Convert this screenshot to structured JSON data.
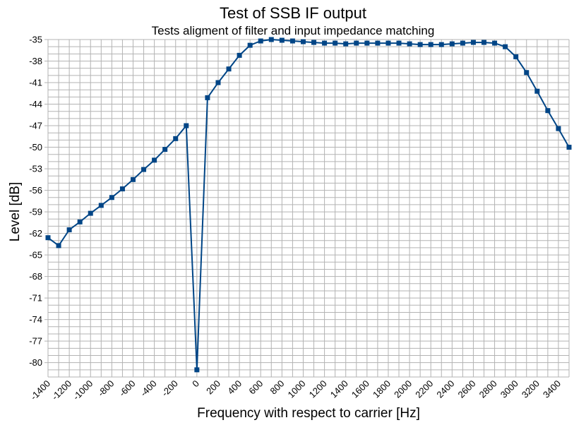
{
  "chart_data": {
    "type": "line",
    "title": "Test of SSB IF output",
    "subtitle": "Tests aligment of filter and input impedance matching",
    "xlabel": "Frequency with respect to carrier [Hz]",
    "ylabel": "Level [dB]",
    "xlim": [
      -1400,
      3500
    ],
    "ylim": [
      -82,
      -35
    ],
    "x_ticks": [
      -1400,
      -1200,
      -1000,
      -800,
      -600,
      -400,
      -200,
      0,
      200,
      400,
      600,
      800,
      1000,
      1200,
      1400,
      1600,
      1800,
      2000,
      2200,
      2400,
      2600,
      2800,
      3000,
      3200,
      3400
    ],
    "y_ticks": [
      -35,
      -38,
      -41,
      -44,
      -47,
      -50,
      -53,
      -56,
      -59,
      -62,
      -65,
      -68,
      -71,
      -74,
      -77,
      -80
    ],
    "grid": true,
    "line_color": "#004586",
    "marker": "square",
    "series": [
      {
        "x": [
          -1400,
          -1300,
          -1200,
          -1100,
          -1000,
          -900,
          -800,
          -700,
          -600,
          -500,
          -400,
          -300,
          -200,
          -100,
          0,
          100,
          200,
          300,
          400,
          500,
          600,
          700,
          800,
          900,
          1000,
          1100,
          1200,
          1300,
          1400,
          1500,
          1600,
          1700,
          1800,
          1900,
          2000,
          2100,
          2200,
          2300,
          2400,
          2500,
          2600,
          2700,
          2800,
          2900,
          3000,
          3100,
          3200,
          3300,
          3400,
          3500
        ],
        "y": [
          -62.6,
          -63.7,
          -61.5,
          -60.4,
          -59.2,
          -58.1,
          -57.0,
          -55.8,
          -54.5,
          -53.1,
          -51.8,
          -50.3,
          -48.8,
          -47.0,
          -81.0,
          -43.1,
          -41.0,
          -39.1,
          -37.2,
          -35.8,
          -35.2,
          -35.0,
          -35.1,
          -35.2,
          -35.3,
          -35.4,
          -35.5,
          -35.5,
          -35.6,
          -35.5,
          -35.5,
          -35.5,
          -35.5,
          -35.5,
          -35.6,
          -35.7,
          -35.7,
          -35.7,
          -35.6,
          -35.5,
          -35.4,
          -35.4,
          -35.5,
          -36.0,
          -37.4,
          -39.6,
          -42.2,
          -44.9,
          -47.4,
          -50.0
        ]
      }
    ]
  }
}
